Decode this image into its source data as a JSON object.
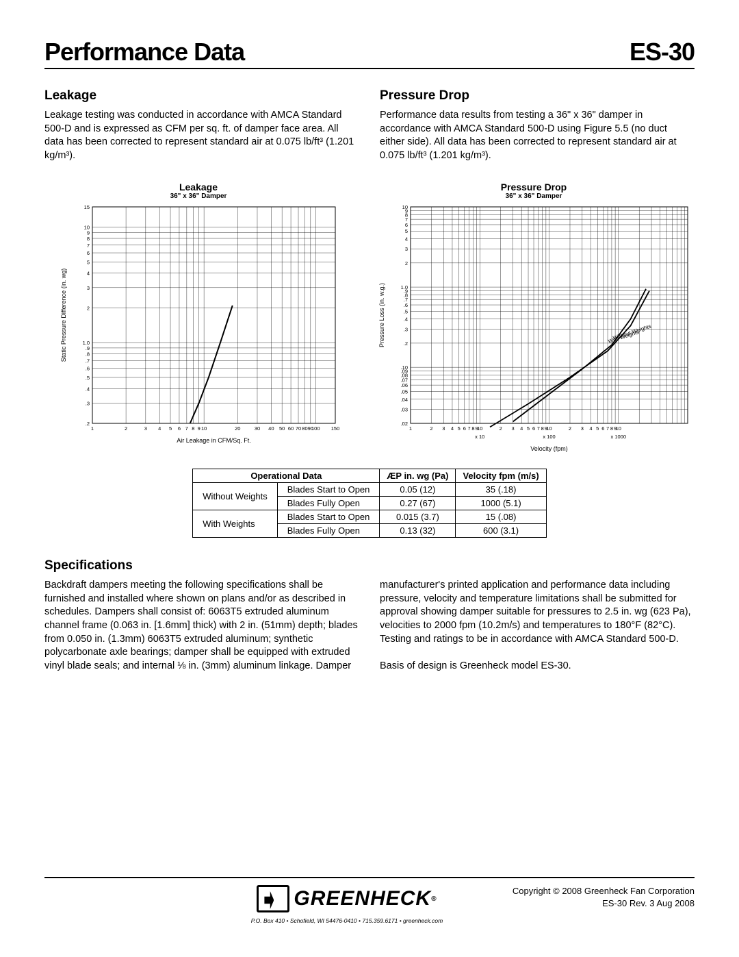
{
  "header": {
    "title": "Performance Data",
    "model": "ES-30"
  },
  "leakage": {
    "title": "Leakage",
    "body": "Leakage testing was conducted in accordance with AMCA Standard 500-D and is expressed as CFM per sq. ft. of damper face area. All data has been corrected to represent standard air at 0.075 lb/ft³ (1.201 kg/m³)."
  },
  "pressure": {
    "title": "Pressure Drop",
    "body": "Performance data results from testing a 36\" x 36\" damper in accordance with AMCA Standard 500-D using Figure 5.5 (no duct either side). All data has been corrected to represent standard air at 0.075 lb/ft³ (1.201 kg/m³)."
  },
  "leakage_chart": {
    "title": "Leakage",
    "subtitle": "36\" x 36\" Damper",
    "xlabel": "Air Leakage in CFM/Sq. Ft.",
    "ylabel": "Static Pressure Difference (in. wg)",
    "xticks": [
      "1",
      "2",
      "3",
      "4",
      "5",
      "6",
      "7",
      "8",
      "9",
      "10",
      "20",
      "30",
      "40",
      "50",
      "60",
      "70",
      "80",
      "90",
      "100",
      "150"
    ],
    "yticks": [
      ".2",
      ".3",
      ".4",
      ".5",
      ".6",
      ".7",
      ".8",
      ".9",
      "1.0",
      "2",
      "3",
      "4",
      "5",
      "6",
      "7",
      "8",
      "9",
      "10",
      "15"
    ],
    "curve": [
      [
        7.5,
        0.2
      ],
      [
        9,
        0.3
      ],
      [
        11,
        0.5
      ],
      [
        14,
        1.0
      ],
      [
        18,
        2.1
      ]
    ],
    "line_color": "#000000",
    "grid_color": "#000000",
    "background_color": "#ffffff"
  },
  "pressure_chart": {
    "title": "Pressure Drop",
    "subtitle": "36\" x 36\" Damper",
    "xlabel": "Velocity (fpm)",
    "ylabel": "Pressure Loss (in. w.g.)",
    "xticks_major": [
      "1",
      "x 10",
      "x 100",
      "x 1000"
    ],
    "xticks": [
      "1",
      "2",
      "3",
      "4",
      "5",
      "6",
      "7",
      "8",
      "9",
      "10",
      "2",
      "3",
      "4",
      "5",
      "6",
      "7",
      "8",
      "9",
      "10",
      "2",
      "3",
      "4",
      "5",
      "6",
      "7",
      "8",
      "9",
      "10"
    ],
    "yticks": [
      ".02",
      ".03",
      ".04",
      ".05",
      ".06",
      ".07",
      ".08",
      ".09",
      ".10",
      ".2",
      ".3",
      ".4",
      ".5",
      ".6",
      ".7",
      ".8",
      ".9",
      "1.0",
      "2",
      "3",
      "4",
      "5",
      "6",
      "7",
      "8",
      "9",
      "10"
    ],
    "curves": [
      {
        "label": "Without Weights",
        "data": [
          [
            30,
            0.021
          ],
          [
            80,
            0.04
          ],
          [
            300,
            0.095
          ],
          [
            800,
            0.19
          ],
          [
            1500,
            0.4
          ],
          [
            2500,
            0.95
          ]
        ]
      },
      {
        "label": "With Weights",
        "data": [
          [
            14,
            0.018
          ],
          [
            50,
            0.035
          ],
          [
            200,
            0.075
          ],
          [
            700,
            0.16
          ],
          [
            1500,
            0.33
          ],
          [
            2800,
            0.9
          ]
        ]
      }
    ],
    "line_color": "#000000",
    "grid_color": "#000000",
    "background_color": "#ffffff"
  },
  "op_table": {
    "header": {
      "c1": "Operational Data",
      "c2": "ÆP in. wg (Pa)",
      "c3": "Velocity fpm (m/s)"
    },
    "rows": [
      {
        "g": "Without Weights",
        "l": "Blades Start to Open",
        "p": "0.05 (12)",
        "v": "35 (.18)"
      },
      {
        "g": "",
        "l": "Blades Fully Open",
        "p": "0.27 (67)",
        "v": "1000 (5.1)"
      },
      {
        "g": "With Weights",
        "l": "Blades Start to Open",
        "p": "0.015 (3.7)",
        "v": "15 (.08)"
      },
      {
        "g": "",
        "l": "Blades Fully Open",
        "p": "0.13 (32)",
        "v": "600 (3.1)"
      }
    ]
  },
  "specs": {
    "title": "Specifications",
    "body1": "Backdraft dampers meeting the following specifications shall be furnished and installed where shown on plans and/or as described in schedules. Dampers shall consist of: 6063T5 extruded aluminum channel frame (0.063 in. [1.6mm] thick) with 2 in. (51mm) depth; blades from 0.050 in. (1.3mm) 6063T5 extruded aluminum; synthetic polycarbonate axle bearings; damper shall be equipped with extruded vinyl blade seals; and internal ⅛ in. (3mm) aluminum linkage. Damper",
    "body2": "manufacturer's printed application and performance data including pressure, velocity and temperature limitations shall be submitted for approval showing damper suitable for pressures to 2.5 in. wg (623 Pa), velocities to 2000 fpm (10.2m/s) and temperatures to 180°F (82°C). Testing and ratings to be in accordance with AMCA Standard 500-D.",
    "basis": "Basis of design is Greenheck model ES-30."
  },
  "footer": {
    "brand": "GREENHECK",
    "addr": "P.O. Box 410 • Schofield, WI 54476-0410 • 715.359.6171 • greenheck.com",
    "copy1": "Copyright © 2008 Greenheck Fan Corporation",
    "copy2": "ES-30 Rev. 3 Aug 2008"
  }
}
